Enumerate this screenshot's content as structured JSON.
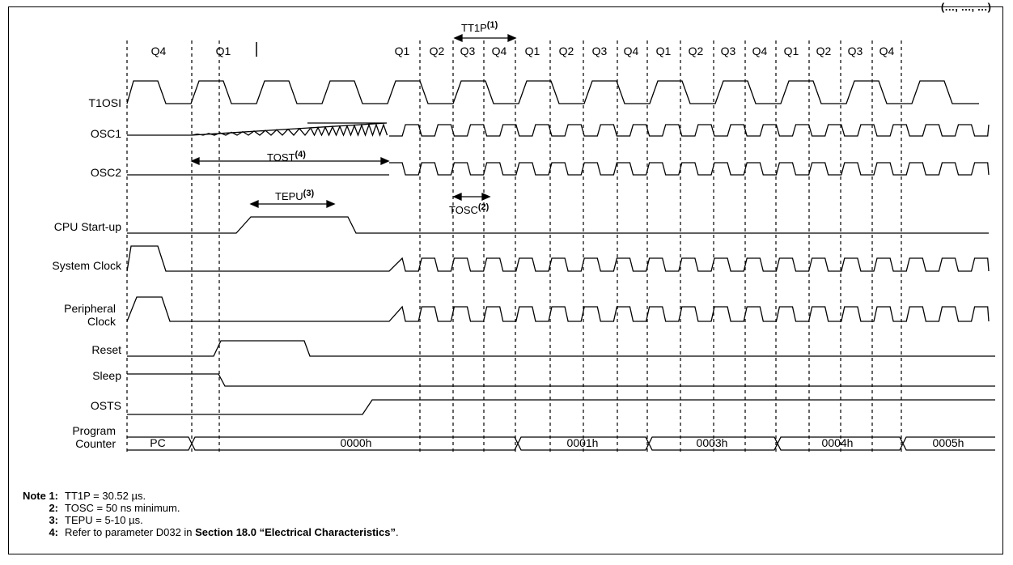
{
  "header": {
    "fragment": "(…, …, …)"
  },
  "signals": {
    "t1osi": "T1OSI",
    "osc1": "OSC1",
    "osc2": "OSC2",
    "cpu_startup": "CPU Start-up",
    "system_clock": "System Clock",
    "peripheral_clock_1": "Peripheral",
    "peripheral_clock_2": "Clock",
    "reset": "Reset",
    "sleep": "Sleep",
    "osts": "OSTS",
    "program_counter_1": "Program",
    "program_counter_2": "Counter"
  },
  "q_labels": [
    "Q4",
    "Q1",
    "Q1",
    "Q2",
    "Q3",
    "Q4",
    "Q1",
    "Q2",
    "Q3",
    "Q4",
    "Q1",
    "Q2",
    "Q3",
    "Q4",
    "Q1",
    "Q2",
    "Q3",
    "Q4"
  ],
  "annotations": {
    "tt1p": "TT1P",
    "tt1p_note": "(1)",
    "tost": "TOST",
    "tost_note": "(4)",
    "tepu": "TEPU",
    "tepu_note": "(3)",
    "tosc": "TOSC",
    "tosc_note": "(2)"
  },
  "program_counter": [
    "PC",
    "0000h",
    "0001h",
    "0003h",
    "0004h",
    "0005h"
  ],
  "notes": [
    {
      "num": "Note 1:",
      "text": "TT1P = 30.52 µs."
    },
    {
      "num": "2:",
      "text": "TOSC = 50 ns minimum."
    },
    {
      "num": "3:",
      "text": "TEPU = 5-10 µs."
    },
    {
      "num": "4:",
      "pre": "Refer to parameter D032 in ",
      "bold": "Section 18.0 “Electrical Characteristics”",
      "post": "."
    }
  ]
}
